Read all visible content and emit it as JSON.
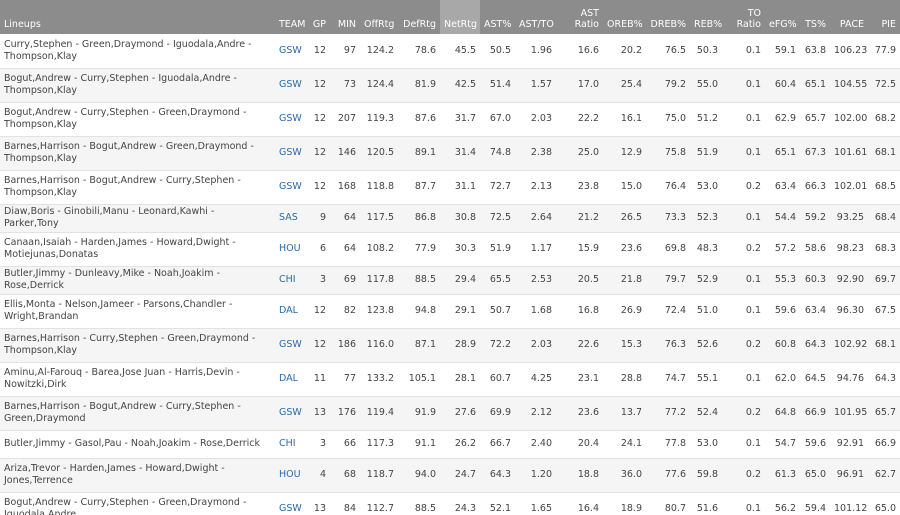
{
  "table": {
    "columns": [
      "Lineups",
      "TEAM",
      "GP",
      "MIN",
      "OffRtg",
      "DefRtg",
      "NetRtg",
      "AST%",
      "AST/TO",
      "AST Ratio",
      "OREB%",
      "DREB%",
      "REB%",
      "TO Ratio",
      "eFG%",
      "TS%",
      "PACE",
      "PIE"
    ],
    "rows": [
      [
        "Curry,Stephen - Green,Draymond - Iguodala,Andre - Thompson,Klay",
        "GSW",
        "12",
        "97",
        "124.2",
        "78.6",
        "45.5",
        "50.5",
        "1.96",
        "16.6",
        "20.2",
        "76.5",
        "50.3",
        "0.1",
        "59.1",
        "63.8",
        "106.23",
        "77.9"
      ],
      [
        "Bogut,Andrew - Curry,Stephen - Iguodala,Andre - Thompson,Klay",
        "GSW",
        "12",
        "73",
        "124.4",
        "81.9",
        "42.5",
        "51.4",
        "1.57",
        "17.0",
        "25.4",
        "79.2",
        "55.0",
        "0.1",
        "60.4",
        "65.1",
        "104.55",
        "72.5"
      ],
      [
        "Bogut,Andrew - Curry,Stephen - Green,Draymond - Thompson,Klay",
        "GSW",
        "12",
        "207",
        "119.3",
        "87.6",
        "31.7",
        "67.0",
        "2.03",
        "22.2",
        "16.1",
        "75.0",
        "51.2",
        "0.1",
        "62.9",
        "65.7",
        "102.00",
        "68.2"
      ],
      [
        "Barnes,Harrison - Bogut,Andrew - Green,Draymond - Thompson,Klay",
        "GSW",
        "12",
        "146",
        "120.5",
        "89.1",
        "31.4",
        "74.8",
        "2.38",
        "25.0",
        "12.9",
        "75.8",
        "51.9",
        "0.1",
        "65.1",
        "67.3",
        "101.61",
        "68.1"
      ],
      [
        "Barnes,Harrison - Bogut,Andrew - Curry,Stephen - Thompson,Klay",
        "GSW",
        "12",
        "168",
        "118.8",
        "87.7",
        "31.1",
        "72.7",
        "2.13",
        "23.8",
        "15.0",
        "76.4",
        "53.0",
        "0.2",
        "63.4",
        "66.3",
        "102.01",
        "68.5"
      ],
      [
        "Diaw,Boris - Ginobili,Manu - Leonard,Kawhi - Parker,Tony",
        "SAS",
        "9",
        "64",
        "117.5",
        "86.8",
        "30.8",
        "72.5",
        "2.64",
        "21.2",
        "26.5",
        "73.3",
        "52.3",
        "0.1",
        "54.4",
        "59.2",
        "93.25",
        "68.4"
      ],
      [
        "Canaan,Isaiah - Harden,James - Howard,Dwight - Motiejunas,Donatas",
        "HOU",
        "6",
        "64",
        "108.2",
        "77.9",
        "30.3",
        "51.9",
        "1.17",
        "15.9",
        "23.6",
        "69.8",
        "48.3",
        "0.2",
        "57.2",
        "58.6",
        "98.23",
        "68.3"
      ],
      [
        "Butler,Jimmy - Dunleavy,Mike - Noah,Joakim - Rose,Derrick",
        "CHI",
        "3",
        "69",
        "117.8",
        "88.5",
        "29.4",
        "65.5",
        "2.53",
        "20.5",
        "21.8",
        "79.7",
        "52.9",
        "0.1",
        "55.3",
        "60.3",
        "92.90",
        "69.7"
      ],
      [
        "Ellis,Monta - Nelson,Jameer - Parsons,Chandler - Wright,Brandan",
        "DAL",
        "12",
        "82",
        "123.8",
        "94.8",
        "29.1",
        "50.7",
        "1.68",
        "16.8",
        "26.9",
        "72.4",
        "51.0",
        "0.1",
        "59.6",
        "63.4",
        "96.30",
        "67.5"
      ],
      [
        "Barnes,Harrison - Curry,Stephen - Green,Draymond - Thompson,Klay",
        "GSW",
        "12",
        "186",
        "116.0",
        "87.1",
        "28.9",
        "72.2",
        "2.03",
        "22.6",
        "15.3",
        "76.3",
        "52.6",
        "0.2",
        "60.8",
        "64.3",
        "102.92",
        "68.1"
      ],
      [
        "Aminu,Al-Farouq - Barea,Jose Juan - Harris,Devin - Nowitzki,Dirk",
        "DAL",
        "11",
        "77",
        "133.2",
        "105.1",
        "28.1",
        "60.7",
        "4.25",
        "23.1",
        "28.8",
        "74.7",
        "55.1",
        "0.1",
        "62.0",
        "64.5",
        "94.76",
        "64.3"
      ],
      [
        "Barnes,Harrison - Bogut,Andrew - Curry,Stephen - Green,Draymond",
        "GSW",
        "13",
        "176",
        "119.4",
        "91.9",
        "27.6",
        "69.9",
        "2.12",
        "23.6",
        "13.7",
        "77.2",
        "52.4",
        "0.2",
        "64.8",
        "66.9",
        "101.95",
        "65.7"
      ],
      [
        "Butler,Jimmy - Gasol,Pau - Noah,Joakim - Rose,Derrick",
        "CHI",
        "3",
        "66",
        "117.3",
        "91.1",
        "26.2",
        "66.7",
        "2.40",
        "20.4",
        "24.1",
        "77.8",
        "53.0",
        "0.1",
        "54.7",
        "59.6",
        "92.91",
        "66.9"
      ],
      [
        "Ariza,Trevor - Harden,James - Howard,Dwight - Jones,Terrence",
        "HOU",
        "4",
        "68",
        "118.7",
        "94.0",
        "24.7",
        "64.3",
        "1.20",
        "18.8",
        "36.0",
        "77.6",
        "59.8",
        "0.2",
        "61.3",
        "65.0",
        "96.91",
        "62.7"
      ],
      [
        "Bogut,Andrew - Curry,Stephen - Green,Draymond - Iguodala,Andre",
        "GSW",
        "13",
        "84",
        "112.7",
        "88.5",
        "24.3",
        "52.1",
        "1.65",
        "16.4",
        "18.9",
        "80.7",
        "51.6",
        "0.1",
        "56.2",
        "59.4",
        "101.12",
        "65.0"
      ]
    ]
  }
}
